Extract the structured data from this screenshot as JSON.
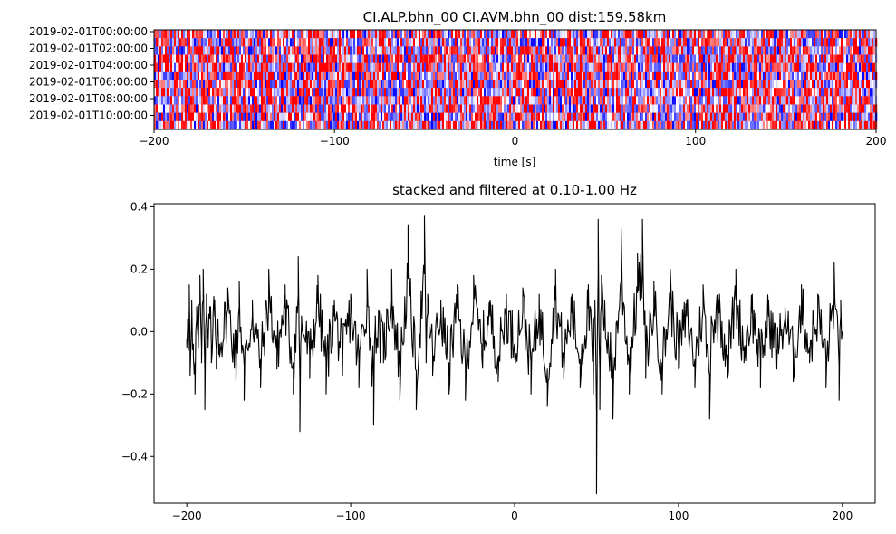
{
  "chart_data": [
    {
      "type": "heatmap",
      "title": "CI.ALP.bhn_00 CI.AVM.bhn_00  dist:159.58km",
      "xlabel": "time [s]",
      "ylabel": "",
      "xlim": [
        -200,
        200
      ],
      "xticks": [
        -200,
        -100,
        0,
        100,
        200
      ],
      "xtick_labels": [
        "−200",
        "−100",
        "0",
        "100",
        "200"
      ],
      "yticks": [
        "2019-02-01T00:00:00",
        "2019-02-01T02:00:00",
        "2019-02-01T04:00:00",
        "2019-02-01T06:00:00",
        "2019-02-01T08:00:00",
        "2019-02-01T10:00:00"
      ],
      "rows": 12,
      "colormap": [
        "#0000ff",
        "#ffffff",
        "#ff0000"
      ],
      "grid": false
    },
    {
      "type": "line",
      "title": "stacked and filtered at 0.10-1.00 Hz",
      "xlabel": "",
      "ylabel": "",
      "xlim": [
        -220,
        220
      ],
      "ylim": [
        -0.55,
        0.41
      ],
      "xticks": [
        -200,
        -100,
        0,
        100,
        200
      ],
      "xtick_labels": [
        "−200",
        "−100",
        "0",
        "100",
        "200"
      ],
      "yticks": [
        -0.4,
        -0.2,
        0.0,
        0.2,
        0.4
      ],
      "ytick_labels": [
        "−0.4",
        "−0.2",
        "0.0",
        "0.2",
        "0.4"
      ],
      "line_color": "#000000",
      "grid": false,
      "series": [
        {
          "x": [
            -200,
            -199.5,
            -199,
            -198.5,
            -198,
            -197,
            -196,
            -195,
            -194,
            -193,
            -192,
            -191,
            -190,
            -189,
            -188,
            -187,
            -186,
            -185,
            -184,
            -183,
            -182,
            -181,
            -180,
            -175,
            -170,
            -168,
            -165,
            -160,
            -155,
            -150,
            -145,
            -140,
            -135,
            -132,
            -131,
            -130,
            -125,
            -120,
            -115,
            -110,
            -105,
            -100,
            -95,
            -90,
            -86,
            -85,
            -80,
            -75,
            -70,
            -65,
            -60,
            -55,
            -54,
            -53,
            -50,
            -45,
            -40,
            -35,
            -30,
            -25,
            -20,
            -15,
            -10,
            -5,
            0,
            5,
            10,
            15,
            20,
            25,
            30,
            35,
            40,
            45,
            48,
            49,
            50,
            51,
            52,
            53,
            55,
            60,
            65,
            70,
            75,
            78,
            80,
            85,
            90,
            95,
            100,
            105,
            110,
            115,
            119,
            120,
            125,
            130,
            135,
            140,
            145,
            150,
            155,
            160,
            165,
            170,
            175,
            180,
            185,
            190,
            195,
            198,
            199,
            200
          ],
          "y": [
            -0.05,
            0.04,
            -0.06,
            0.15,
            -0.14,
            0.1,
            -0.08,
            -0.2,
            0.08,
            -0.05,
            0.18,
            -0.1,
            0.2,
            -0.25,
            0.12,
            -0.05,
            0.08,
            -0.1,
            0.05,
            0.1,
            -0.12,
            0.04,
            -0.08,
            0.14,
            -0.16,
            0.16,
            -0.22,
            0.1,
            -0.18,
            0.2,
            -0.12,
            0.15,
            -0.2,
            0.24,
            -0.32,
            0.05,
            -0.15,
            0.18,
            -0.2,
            0.1,
            -0.14,
            0.12,
            -0.18,
            0.2,
            -0.3,
            0.05,
            -0.1,
            0.2,
            -0.22,
            0.34,
            -0.25,
            0.37,
            -0.1,
            0.12,
            -0.14,
            0.1,
            -0.2,
            0.15,
            -0.22,
            0.18,
            -0.08,
            0.1,
            -0.16,
            0.12,
            -0.08,
            0.14,
            -0.2,
            0.12,
            -0.24,
            0.2,
            -0.15,
            0.12,
            -0.18,
            0.15,
            -0.2,
            0.1,
            -0.52,
            0.36,
            -0.25,
            0.18,
            0.1,
            -0.28,
            0.33,
            -0.2,
            0.25,
            0.36,
            -0.15,
            0.16,
            -0.2,
            0.2,
            -0.12,
            0.1,
            -0.18,
            0.15,
            -0.28,
            0.05,
            0.12,
            -0.15,
            0.2,
            -0.1,
            0.12,
            -0.18,
            0.1,
            -0.12,
            0.08,
            -0.16,
            0.15,
            -0.1,
            0.12,
            -0.18,
            0.22,
            -0.22,
            0.1,
            0.0
          ]
        }
      ]
    }
  ]
}
